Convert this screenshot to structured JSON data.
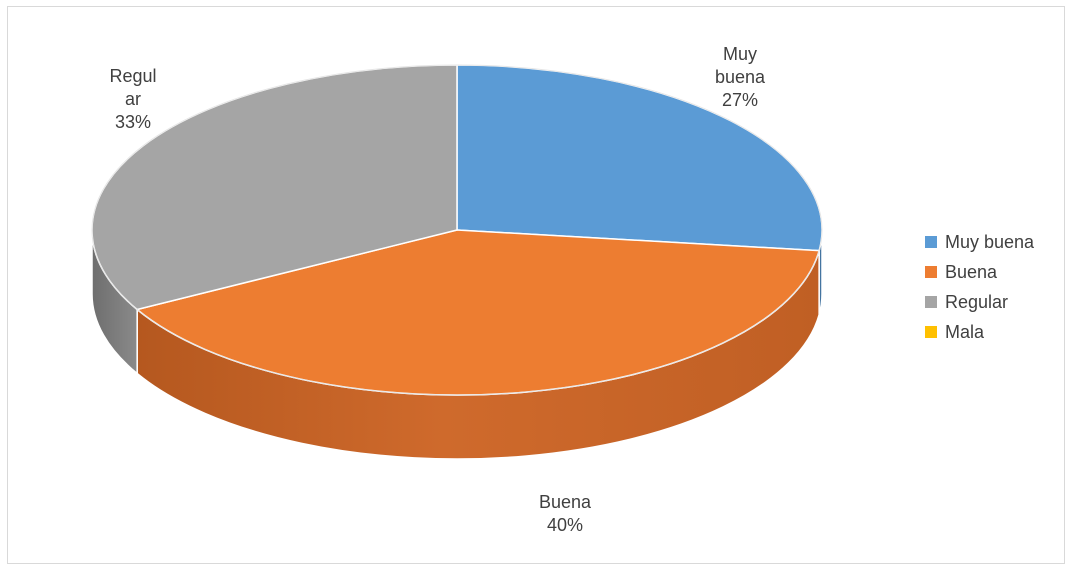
{
  "chart_data": {
    "type": "pie",
    "style": "3d",
    "categories": [
      "Muy buena",
      "Buena",
      "Regular",
      "Mala"
    ],
    "values": [
      27,
      40,
      33,
      0
    ],
    "percent_labels": [
      "27%",
      "40%",
      "33%",
      ""
    ],
    "slice_label_lines": [
      [
        "Muy",
        "buena",
        "27%"
      ],
      [
        "Buena",
        "40%"
      ],
      [
        "Regul",
        "ar",
        "33%"
      ],
      []
    ],
    "colors": [
      "#5b9bd5",
      "#ed7d31",
      "#a5a5a5",
      "#ffc000"
    ],
    "legend": {
      "position": "right",
      "entries": [
        "Muy buena",
        "Buena",
        "Regular",
        "Mala"
      ]
    },
    "title": ""
  }
}
